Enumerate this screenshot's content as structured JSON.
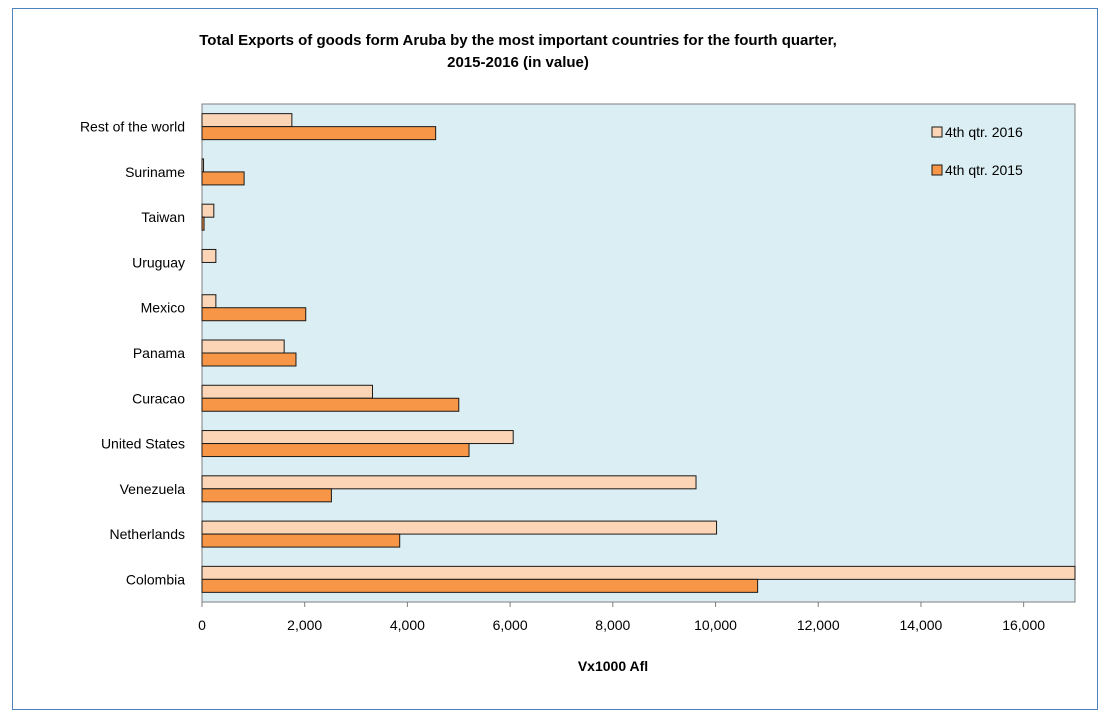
{
  "chart_data": {
    "type": "bar",
    "orientation": "horizontal",
    "title_lines": [
      "Total Exports of goods form Aruba by the most important countries for the fourth quarter,",
      "2015-2016 (in value)"
    ],
    "xlabel": "Vx1000 Afl",
    "ylabel": "",
    "xlim": [
      0,
      17000
    ],
    "xticks": [
      0,
      2000,
      4000,
      6000,
      8000,
      10000,
      12000,
      14000,
      16000
    ],
    "xtick_labels": [
      "0",
      "2,000",
      "4,000",
      "6,000",
      "8,000",
      "10,000",
      "12,000",
      "14,000",
      "16,000"
    ],
    "categories": [
      "Rest of the world",
      "Suriname",
      "Taiwan",
      "Uruguay",
      "Mexico",
      "Panama",
      "Curacao",
      "United States",
      "Venezuela",
      "Netherlands",
      "Colombia"
    ],
    "series": [
      {
        "name": "4th qtr. 2016",
        "color": "#fbd5b5",
        "values": [
          1750,
          30,
          230,
          270,
          270,
          1600,
          3320,
          6060,
          9620,
          10020,
          17000
        ]
      },
      {
        "name": "4th qtr. 2015",
        "color": "#f79646",
        "values": [
          4550,
          820,
          40,
          0,
          2020,
          1830,
          5000,
          5200,
          2520,
          3850,
          10820
        ]
      }
    ],
    "legend_position": "top-right",
    "plot_background": "#dbeef4",
    "grid": false
  }
}
